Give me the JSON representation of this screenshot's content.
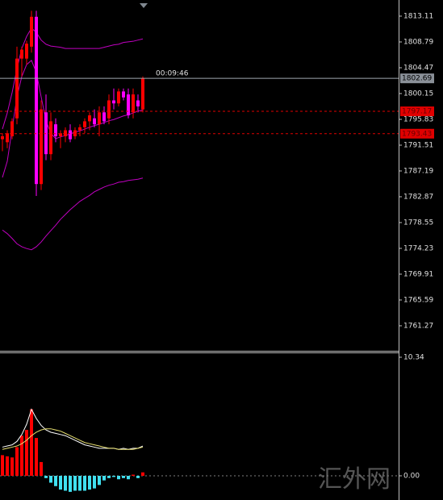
{
  "chart_data": [
    {
      "type": "candlestick",
      "open": [
        1792.5,
        1792,
        1793,
        1796,
        1806,
        1806,
        1808,
        1813,
        1785,
        1797,
        1790,
        1795,
        1793,
        1793,
        1794,
        1793,
        1794,
        1794.5,
        1795.5,
        1796,
        1795,
        1797,
        1796,
        1799,
        1798.5,
        1800.5,
        1800,
        1797,
        1799,
        1797.5
      ],
      "high": [
        1793.5,
        1794,
        1796,
        1808,
        1808,
        1809,
        1814,
        1814,
        1799,
        1800,
        1797,
        1796,
        1794,
        1794.5,
        1795,
        1794.5,
        1795,
        1796,
        1797,
        1797.5,
        1798,
        1798,
        1800,
        1801,
        1801,
        1801,
        1801,
        1801,
        1800,
        1803
      ],
      "low": [
        1790.5,
        1791,
        1792.5,
        1795,
        1803,
        1805,
        1807,
        1783,
        1784,
        1789,
        1789,
        1792,
        1791,
        1792,
        1792,
        1792.5,
        1793,
        1793.5,
        1794,
        1794.5,
        1793,
        1795,
        1795,
        1797.5,
        1798,
        1799,
        1796,
        1796,
        1797,
        1797
      ],
      "close": [
        1793,
        1793.5,
        1795.5,
        1806,
        1807.5,
        1808.5,
        1813,
        1785,
        1797.5,
        1790,
        1795.5,
        1793,
        1793.5,
        1794,
        1792.5,
        1794,
        1794.5,
        1795.5,
        1796.5,
        1795,
        1797,
        1795.5,
        1799,
        1798.5,
        1800.5,
        1799.5,
        1796.5,
        1800,
        1798,
        1802.69
      ],
      "bands": {
        "upper": [
          1794.2,
          1796.9,
          1800.3,
          1804.3,
          1807.7,
          1809.7,
          1811.1,
          1810.4,
          1809.1,
          1808.4,
          1808.1,
          1808,
          1807.9,
          1807.7,
          1807.7,
          1807.7,
          1807.7,
          1807.7,
          1807.7,
          1807.7,
          1807.7,
          1807.9,
          1808.1,
          1808.3,
          1808.4,
          1808.7,
          1808.8,
          1808.9,
          1809.1,
          1809.3
        ],
        "middle": [
          1786.1,
          1788.8,
          1794.2,
          1799.6,
          1803,
          1805,
          1805.7,
          1803.7,
          1799.6,
          1795.6,
          1793.5,
          1792.6,
          1792.9,
          1793.1,
          1793.4,
          1793.7,
          1793.9,
          1794.2,
          1794.5,
          1794.8,
          1795,
          1795.3,
          1795.6,
          1795.8,
          1796.1,
          1796.4,
          1796.6,
          1796.9,
          1797.2,
          1797.4
        ],
        "lower": [
          1777.3,
          1776.7,
          1775.9,
          1775,
          1774.5,
          1774.2,
          1774,
          1774.5,
          1775.3,
          1776.3,
          1777.2,
          1778.1,
          1779.1,
          1779.9,
          1780.7,
          1781.4,
          1782.1,
          1782.6,
          1783.1,
          1783.7,
          1784.1,
          1784.5,
          1784.8,
          1785,
          1785.3,
          1785.4,
          1785.6,
          1785.7,
          1785.8,
          1786
        ]
      },
      "up_color": "#ff0000",
      "down_color": "#ff00ff",
      "band_color": "#c000c0",
      "ylim": [
        1757.08,
        1815.81
      ],
      "yticks": [
        1813.11,
        1808.79,
        1804.47,
        1800.15,
        1795.83,
        1791.51,
        1787.19,
        1782.87,
        1778.55,
        1774.23,
        1769.91,
        1765.59,
        1761.27
      ],
      "current_price": 1802.69,
      "price_lines": [
        1797.17,
        1793.43
      ],
      "timer": "00:09:46"
    },
    {
      "type": "macd",
      "histogram": [
        1.8,
        1.7,
        1.6,
        2.5,
        3.5,
        4.0,
        5.8,
        3.3,
        1.2,
        -0.2,
        -0.6,
        -0.9,
        -1.2,
        -1.3,
        -1.4,
        -1.3,
        -1.3,
        -1.3,
        -1.2,
        -1.1,
        -0.8,
        -0.4,
        -0.2,
        -0.1,
        -0.3,
        -0.2,
        -0.3,
        0.1,
        -0.2,
        0.3
      ],
      "line": [
        2.5,
        2.6,
        2.7,
        3.0,
        3.6,
        4.5,
        5.8,
        5.0,
        4.4,
        4.0,
        3.8,
        3.7,
        3.6,
        3.5,
        3.3,
        3.1,
        2.9,
        2.7,
        2.6,
        2.5,
        2.4,
        2.4,
        2.4,
        2.4,
        2.3,
        2.4,
        2.3,
        2.4,
        2.4,
        2.6
      ],
      "signal": [
        2.3,
        2.4,
        2.5,
        2.6,
        2.8,
        3.1,
        3.5,
        3.8,
        4.0,
        4.1,
        4.1,
        4.0,
        3.9,
        3.7,
        3.5,
        3.3,
        3.1,
        2.9,
        2.8,
        2.7,
        2.6,
        2.5,
        2.4,
        2.4,
        2.3,
        2.3,
        2.3,
        2.3,
        2.4,
        2.5
      ],
      "up_color": "#ff0000",
      "down_color": "#40e0f0",
      "line_color": "#ffffff",
      "signal_color": "#e8e070",
      "ylim": [
        -2.11,
        10.76
      ],
      "yticks": [
        10.34,
        {
          "value": 0,
          "label": "0.00"
        }
      ]
    }
  ],
  "watermark": "汇外网"
}
